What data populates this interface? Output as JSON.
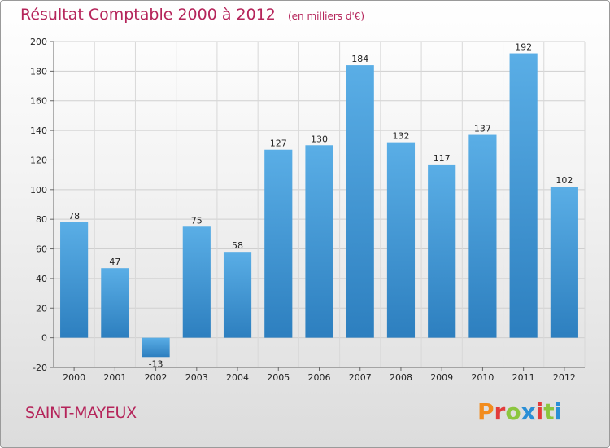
{
  "header": {
    "title": "Résultat Comptable 2000 à 2012",
    "unit": "(en milliers d'€)"
  },
  "footer": {
    "commune": "SAINT-MAYEUX",
    "logo_text": "Proxiti",
    "logo_colors": [
      "#f28c1e",
      "#e23b3b",
      "#8cc63f",
      "#2a8fd6",
      "#e23b3b",
      "#8cc63f",
      "#2a8fd6"
    ]
  },
  "colors": {
    "bar_top": "#5aaee6",
    "bar_bottom": "#2d7fbf",
    "title": "#b5245a"
  },
  "chart_data": {
    "type": "bar",
    "categories": [
      "2000",
      "2001",
      "2002",
      "2003",
      "2004",
      "2005",
      "2006",
      "2007",
      "2008",
      "2009",
      "2010",
      "2011",
      "2012"
    ],
    "values": [
      78,
      47,
      -13,
      75,
      58,
      127,
      130,
      184,
      132,
      117,
      137,
      192,
      102
    ],
    "title": "Résultat Comptable 2000 à 2012",
    "subtitle": "(en milliers d'€)",
    "xlabel": "",
    "ylabel": "",
    "ylim": [
      -20,
      200
    ],
    "yticks": [
      -20,
      0,
      20,
      40,
      60,
      80,
      100,
      120,
      140,
      160,
      180,
      200
    ],
    "grid": true
  }
}
